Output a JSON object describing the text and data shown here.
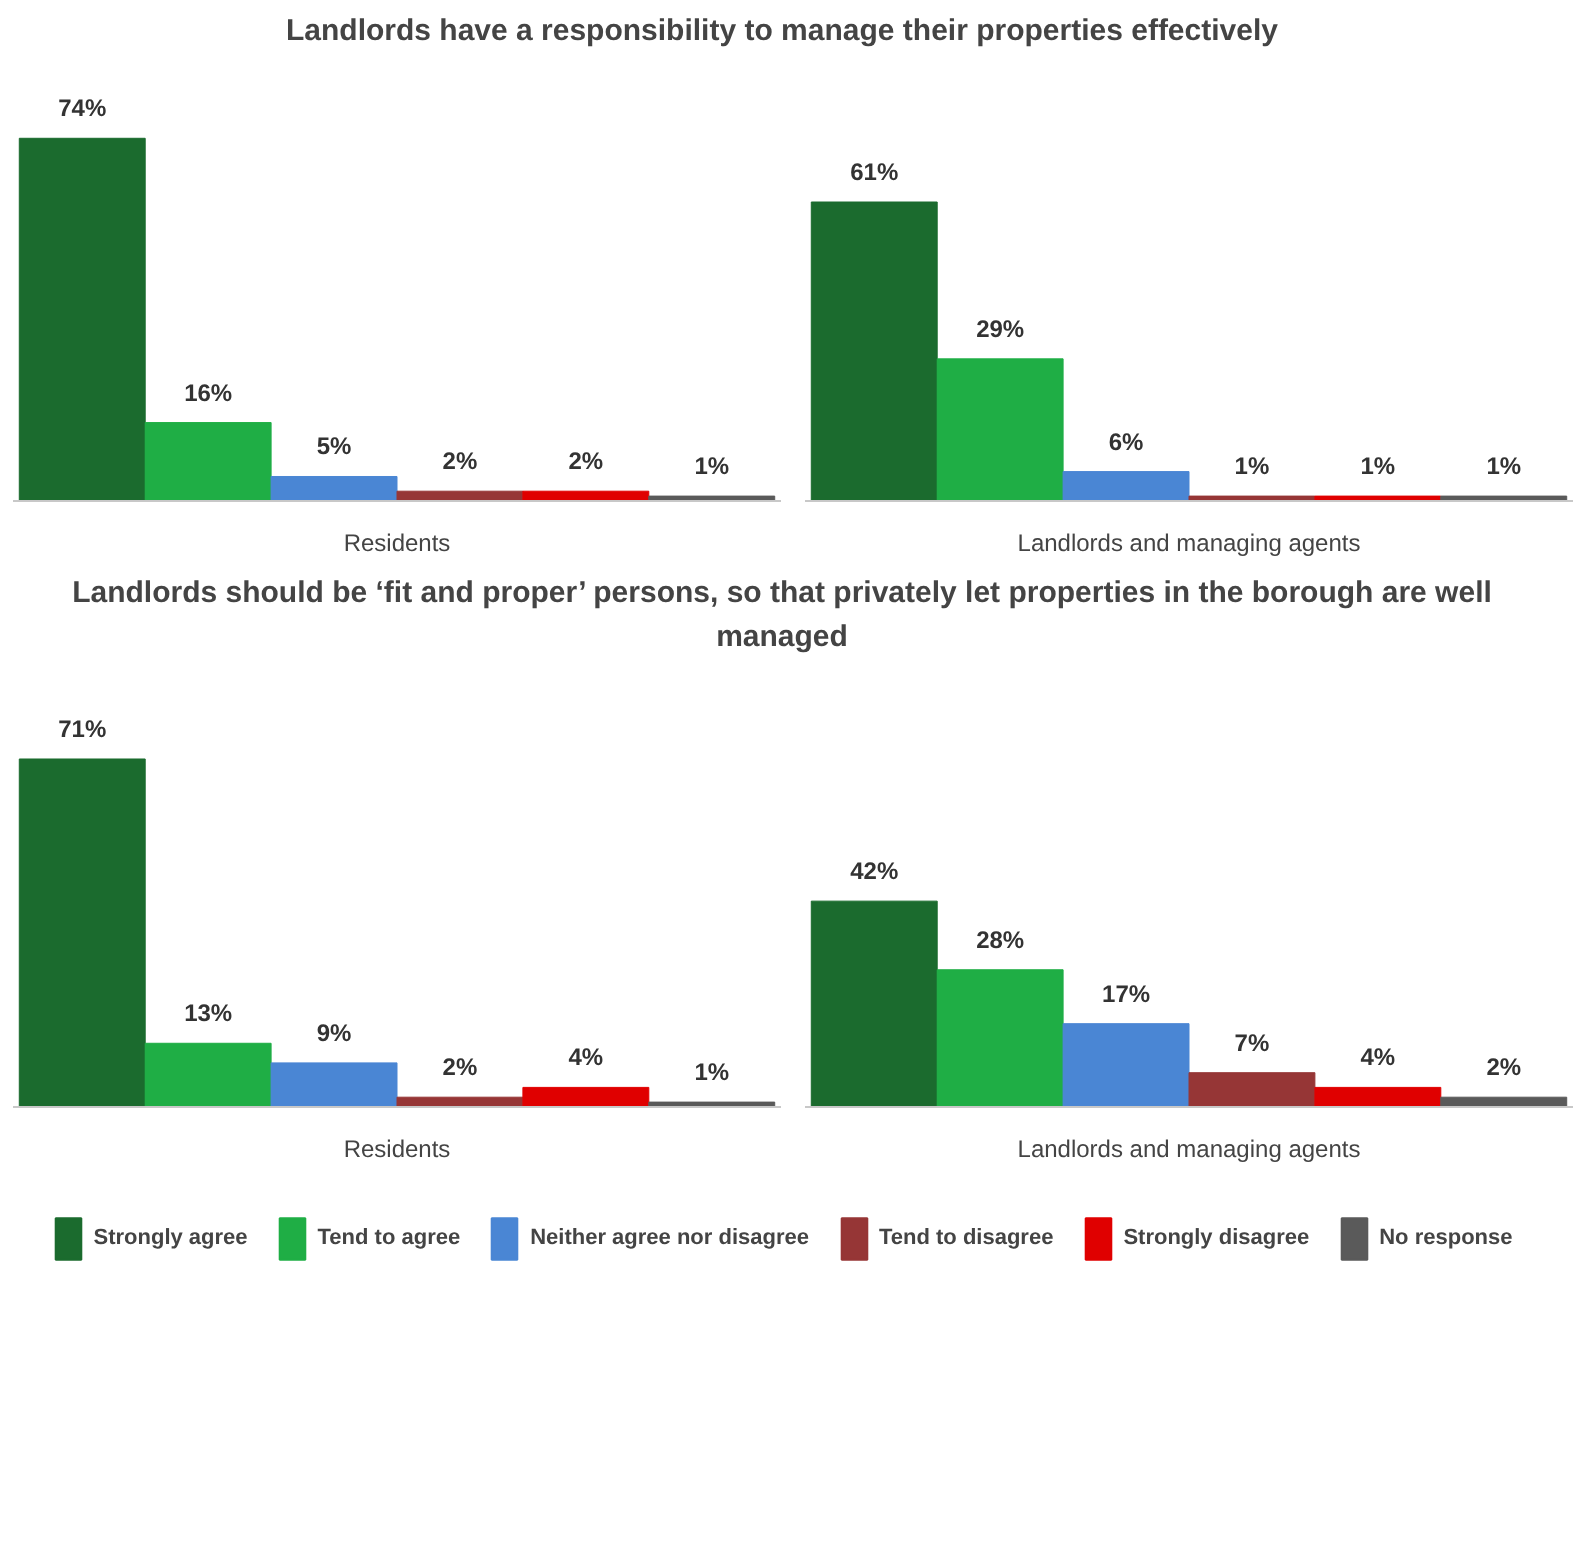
{
  "chart_data": [
    {
      "type": "bar",
      "title": "Landlords have a responsibility to manage their properties effectively",
      "xlabel": "Residents",
      "categories": [
        null
      ],
      "series": [
        {
          "color": "#1b6b2e",
          "values": [
            74
          ],
          "value_labels": [
            "74%"
          ]
        },
        {
          "color": "#1fae45",
          "values": [
            16
          ],
          "value_labels": [
            "16%"
          ]
        },
        {
          "color": "#4a86d4",
          "values": [
            5
          ],
          "value_labels": [
            "5%"
          ]
        },
        {
          "color": "#963636",
          "values": [
            2
          ],
          "value_labels": [
            "2%"
          ]
        },
        {
          "color": "#e00000",
          "values": [
            2
          ],
          "value_labels": [
            "2%"
          ]
        },
        {
          "color": "#5a5a5a",
          "values": [
            1
          ],
          "value_labels": [
            "1%"
          ]
        }
      ]
    },
    {
      "type": "bar",
      "xlabel": "Landlords and managing agents",
      "categories": [
        null
      ],
      "series": [
        {
          "color": "#1b6b2e",
          "values": [
            61
          ],
          "value_labels": [
            "61%"
          ]
        },
        {
          "color": "#1fae45",
          "values": [
            29
          ],
          "value_labels": [
            "29%"
          ]
        },
        {
          "color": "#4a86d4",
          "values": [
            6
          ],
          "value_labels": [
            "6%"
          ]
        },
        {
          "color": "#963636",
          "values": [
            1
          ],
          "value_labels": [
            "1%"
          ]
        },
        {
          "color": "#e00000",
          "values": [
            1
          ],
          "value_labels": [
            "1%"
          ]
        },
        {
          "color": "#5a5a5a",
          "values": [
            1
          ],
          "value_labels": [
            "1%"
          ]
        }
      ]
    },
    {
      "type": "bar",
      "title": "Landlords should be ‘fit and proper’ persons, so that privately let properties in the borough are well managed",
      "xlabel": "Residents",
      "categories": [
        null
      ],
      "series": [
        {
          "color": "#1b6b2e",
          "values": [
            71
          ],
          "value_labels": [
            "71%"
          ]
        },
        {
          "color": "#1fae45",
          "values": [
            13
          ],
          "value_labels": [
            "13%"
          ]
        },
        {
          "color": "#4a86d4",
          "values": [
            9
          ],
          "value_labels": [
            "9%"
          ]
        },
        {
          "color": "#963636",
          "values": [
            2
          ],
          "value_labels": [
            "2%"
          ]
        },
        {
          "color": "#e00000",
          "values": [
            4
          ],
          "value_labels": [
            "4%"
          ]
        },
        {
          "color": "#5a5a5a",
          "values": [
            1
          ],
          "value_labels": [
            "1%"
          ]
        }
      ]
    },
    {
      "type": "bar",
      "xlabel": "Landlords and managing agents",
      "categories": [
        null
      ],
      "legend": "bottom",
      "series": [
        {
          "name": "Strongly agree",
          "color": "#1b6b2e",
          "values": [
            42
          ],
          "value_labels": [
            "42%"
          ]
        },
        {
          "name": "Tend to agree",
          "color": "#1fae45",
          "values": [
            28
          ],
          "value_labels": [
            "28%"
          ]
        },
        {
          "name": "Neither agree nor disagree",
          "color": "#4a86d4",
          "values": [
            17
          ],
          "value_labels": [
            "17%"
          ]
        },
        {
          "name": "Tend to disagree",
          "color": "#963636",
          "values": [
            7
          ],
          "value_labels": [
            "7%"
          ]
        },
        {
          "name": "Strongly disagree",
          "color": "#e00000",
          "values": [
            4
          ],
          "value_labels": [
            "4%"
          ]
        },
        {
          "name": "No response",
          "color": "#5a5a5a",
          "values": [
            2
          ],
          "value_labels": [
            "2%"
          ]
        }
      ]
    }
  ]
}
